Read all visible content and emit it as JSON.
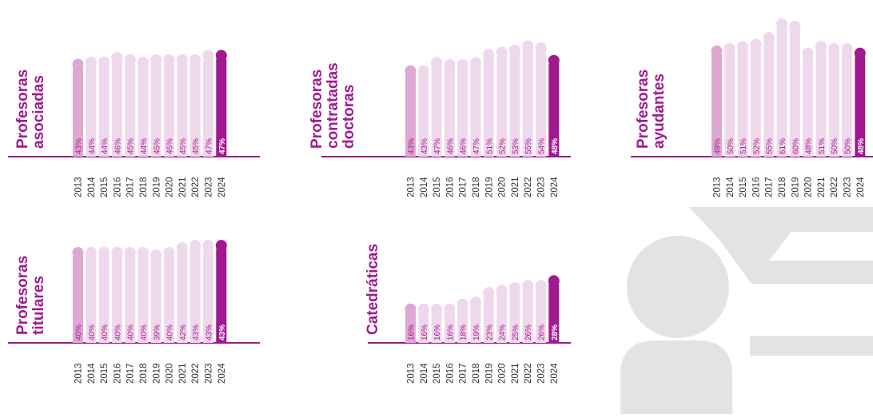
{
  "colors": {
    "accent": "#a1198f",
    "first_bar": "#dea8d3",
    "mid_bar": "#f0d8ec",
    "placeholder_gray": "#e3e3e3"
  },
  "decor": {
    "placeholder_icon": "person-at-desk-icon"
  },
  "chart_data": [
    {
      "type": "bar",
      "title": "Profesoras asociadas",
      "title_lines": [
        "Profesoras",
        "asociadas"
      ],
      "categories": [
        "2013",
        "2014",
        "2015",
        "2016",
        "2017",
        "2018",
        "2019",
        "2020",
        "2021",
        "2022",
        "2023",
        "2024"
      ],
      "values": [
        43,
        44,
        44,
        46,
        45,
        44,
        45,
        45,
        45,
        45,
        47,
        47
      ],
      "value_labels": [
        "43%",
        "44%",
        "44%",
        "46%",
        "45%",
        "44%",
        "45%",
        "45%",
        "45%",
        "45%",
        "47%",
        "47%"
      ],
      "ylim": [
        0,
        50
      ]
    },
    {
      "type": "bar",
      "title": "Profesoras contratadas doctoras",
      "title_lines": [
        "Profesoras",
        "contratadas",
        "doctoras"
      ],
      "categories": [
        "2013",
        "2014",
        "2015",
        "2016",
        "2017",
        "2018",
        "2019",
        "2020",
        "2021",
        "2022",
        "2023",
        "2024"
      ],
      "values": [
        43,
        43,
        47,
        46,
        46,
        47,
        51,
        52,
        53,
        55,
        54,
        48
      ],
      "value_labels": [
        "43%",
        "43%",
        "47%",
        "46%",
        "46%",
        "47%",
        "51%",
        "52%",
        "53%",
        "55%",
        "54%",
        "48%"
      ],
      "ylim": [
        0,
        58
      ]
    },
    {
      "type": "bar",
      "title": "Profesoras ayudantes",
      "title_lines": [
        "Profesoras",
        "ayudantes"
      ],
      "categories": [
        "2013",
        "2014",
        "2015",
        "2016",
        "2017",
        "2018",
        "2019",
        "2020",
        "2021",
        "2022",
        "2023",
        "2024"
      ],
      "values": [
        49,
        50,
        51,
        52,
        55,
        61,
        60,
        48,
        51,
        50,
        50,
        48
      ],
      "value_labels": [
        "49%",
        "50%",
        "51%",
        "52%",
        "55%",
        "61%",
        "60%",
        "48%",
        "51%",
        "50%",
        "50%",
        "48%"
      ],
      "ylim": [
        0,
        64
      ]
    },
    {
      "type": "bar",
      "title": "Profesoras titulares",
      "title_lines": [
        "Profesoras",
        "titulares"
      ],
      "categories": [
        "2013",
        "2014",
        "2015",
        "2016",
        "2017",
        "2018",
        "2019",
        "2020",
        "2021",
        "2022",
        "2023",
        "2024"
      ],
      "values": [
        40,
        40,
        40,
        40,
        40,
        40,
        39,
        40,
        42,
        43,
        43,
        43
      ],
      "value_labels": [
        "40%",
        "40%",
        "40%",
        "40%",
        "40%",
        "40%",
        "39%",
        "40%",
        "42%",
        "43%",
        "43%",
        "43%"
      ],
      "ylim": [
        0,
        45
      ]
    },
    {
      "type": "bar",
      "title": "Catedráticas",
      "title_lines": [
        "Catedráticas"
      ],
      "categories": [
        "2013",
        "2014",
        "2015",
        "2016",
        "2017",
        "2018",
        "2019",
        "2020",
        "2021",
        "2022",
        "2023",
        "2024"
      ],
      "values": [
        16,
        16,
        16,
        16,
        18,
        19,
        23,
        24,
        25,
        26,
        26,
        28
      ],
      "value_labels": [
        "16%",
        "16%",
        "16%",
        "16%",
        "18%",
        "19%",
        "23%",
        "24%",
        "25%",
        "26%",
        "26%",
        "28%"
      ],
      "ylim": [
        0,
        40
      ]
    }
  ]
}
